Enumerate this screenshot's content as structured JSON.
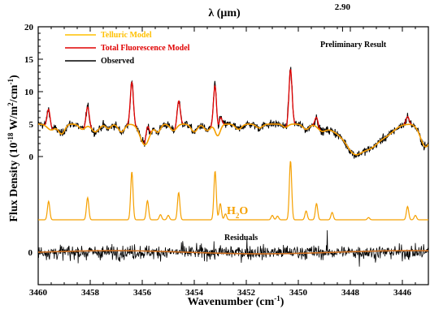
{
  "chart_data": {
    "type": "line",
    "top_axis_label": "λ (μm)",
    "top_tick_label": "2.90",
    "top_tick_wavenumber": 3448.3,
    "xlabel": "Wavenumber (cm",
    "xlabel_sup": "-1",
    "xlabel_end": ")",
    "ylabel": "Flux Density (10",
    "ylabel_sup1": "-18",
    "ylabel_mid": " W/m",
    "ylabel_sup2": "2",
    "ylabel_mid2": "/cm",
    "ylabel_sup3": "-1",
    "ylabel_end": ")",
    "xlim": [
      3460,
      3445
    ],
    "ylim_main": [
      0,
      20
    ],
    "xticks": [
      3460,
      3458,
      3456,
      3454,
      3452,
      3450,
      3448,
      3446
    ],
    "yticks": [
      20,
      15,
      10,
      5,
      0
    ],
    "residual_ytick": "0",
    "annotations": {
      "preliminary": "Preliminary Result",
      "h2o_main": "H",
      "h2o_sub": "2",
      "h2o_end": "O",
      "residuals": "Residuals"
    },
    "legend": [
      {
        "label": "Telluric Model",
        "color": "#FFC000"
      },
      {
        "label": "Total Fluorescence Model",
        "color": "#E00000"
      },
      {
        "label": "Observed",
        "color": "#000000"
      }
    ],
    "colors": {
      "observed": "#000000",
      "telluric": "#F5A000",
      "fluorescence": "#E00000",
      "h2o_model": "#F5A000",
      "residual_fit": "#D07020"
    },
    "continuum_level": 5.0,
    "telluric_absorptions": [
      {
        "wn": 3459.5,
        "depth": 0.9,
        "width": 0.15
      },
      {
        "wn": 3459.1,
        "depth": 1.5,
        "width": 0.12
      },
      {
        "wn": 3458.3,
        "depth": 0.8,
        "width": 0.12
      },
      {
        "wn": 3457.8,
        "depth": 1.2,
        "width": 0.15
      },
      {
        "wn": 3457.3,
        "depth": 0.7,
        "width": 0.1
      },
      {
        "wn": 3456.8,
        "depth": 1.2,
        "width": 0.12
      },
      {
        "wn": 3455.9,
        "depth": 3.2,
        "width": 0.18
      },
      {
        "wn": 3455.4,
        "depth": 1.2,
        "width": 0.1
      },
      {
        "wn": 3454.8,
        "depth": 1.0,
        "width": 0.12
      },
      {
        "wn": 3454.0,
        "depth": 1.2,
        "width": 0.12
      },
      {
        "wn": 3453.5,
        "depth": 1.0,
        "width": 0.12
      },
      {
        "wn": 3453.1,
        "depth": 1.8,
        "width": 0.1
      },
      {
        "wn": 3452.3,
        "depth": 0.8,
        "width": 0.12
      },
      {
        "wn": 3451.5,
        "depth": 0.6,
        "width": 0.12
      },
      {
        "wn": 3450.5,
        "depth": 0.5,
        "width": 0.1
      },
      {
        "wn": 3449.7,
        "depth": 0.8,
        "width": 0.12
      },
      {
        "wn": 3449.1,
        "depth": 0.8,
        "width": 0.15
      },
      {
        "wn": 3448.3,
        "depth": 1.5,
        "width": 0.45
      },
      {
        "wn": 3447.8,
        "depth": 3.5,
        "width": 0.3
      },
      {
        "wn": 3447.2,
        "depth": 3.0,
        "width": 0.3
      },
      {
        "wn": 3446.6,
        "depth": 1.5,
        "width": 0.3
      },
      {
        "wn": 3445.1,
        "depth": 3.5,
        "width": 0.2
      }
    ],
    "h2o_lines": [
      {
        "wn": 3459.6,
        "height": 2.5
      },
      {
        "wn": 3458.1,
        "height": 3.0
      },
      {
        "wn": 3456.4,
        "height": 6.5
      },
      {
        "wn": 3455.8,
        "height": 2.6
      },
      {
        "wn": 3455.3,
        "height": 0.7
      },
      {
        "wn": 3455.0,
        "height": 0.6
      },
      {
        "wn": 3454.6,
        "height": 3.7
      },
      {
        "wn": 3453.2,
        "height": 6.6
      },
      {
        "wn": 3453.0,
        "height": 2.2
      },
      {
        "wn": 3452.8,
        "height": 0.8
      },
      {
        "wn": 3451.0,
        "height": 0.6
      },
      {
        "wn": 3450.8,
        "height": 0.5
      },
      {
        "wn": 3450.3,
        "height": 8.0
      },
      {
        "wn": 3449.7,
        "height": 1.2
      },
      {
        "wn": 3449.3,
        "height": 2.2
      },
      {
        "wn": 3448.7,
        "height": 1.0
      },
      {
        "wn": 3447.3,
        "height": 0.3
      },
      {
        "wn": 3445.8,
        "height": 1.8
      },
      {
        "wn": 3445.5,
        "height": 0.6
      }
    ],
    "fluorescence_emission": [
      {
        "wn": 3459.6,
        "height": 3.0
      },
      {
        "wn": 3458.1,
        "height": 3.0
      },
      {
        "wn": 3456.4,
        "height": 6.5
      },
      {
        "wn": 3455.8,
        "height": 2.3
      },
      {
        "wn": 3454.6,
        "height": 3.8
      },
      {
        "wn": 3453.2,
        "height": 7.0
      },
      {
        "wn": 3453.0,
        "height": 2.0
      },
      {
        "wn": 3450.3,
        "height": 8.5
      },
      {
        "wn": 3449.3,
        "height": 1.5
      },
      {
        "wn": 3445.8,
        "height": 1.2
      }
    ]
  }
}
